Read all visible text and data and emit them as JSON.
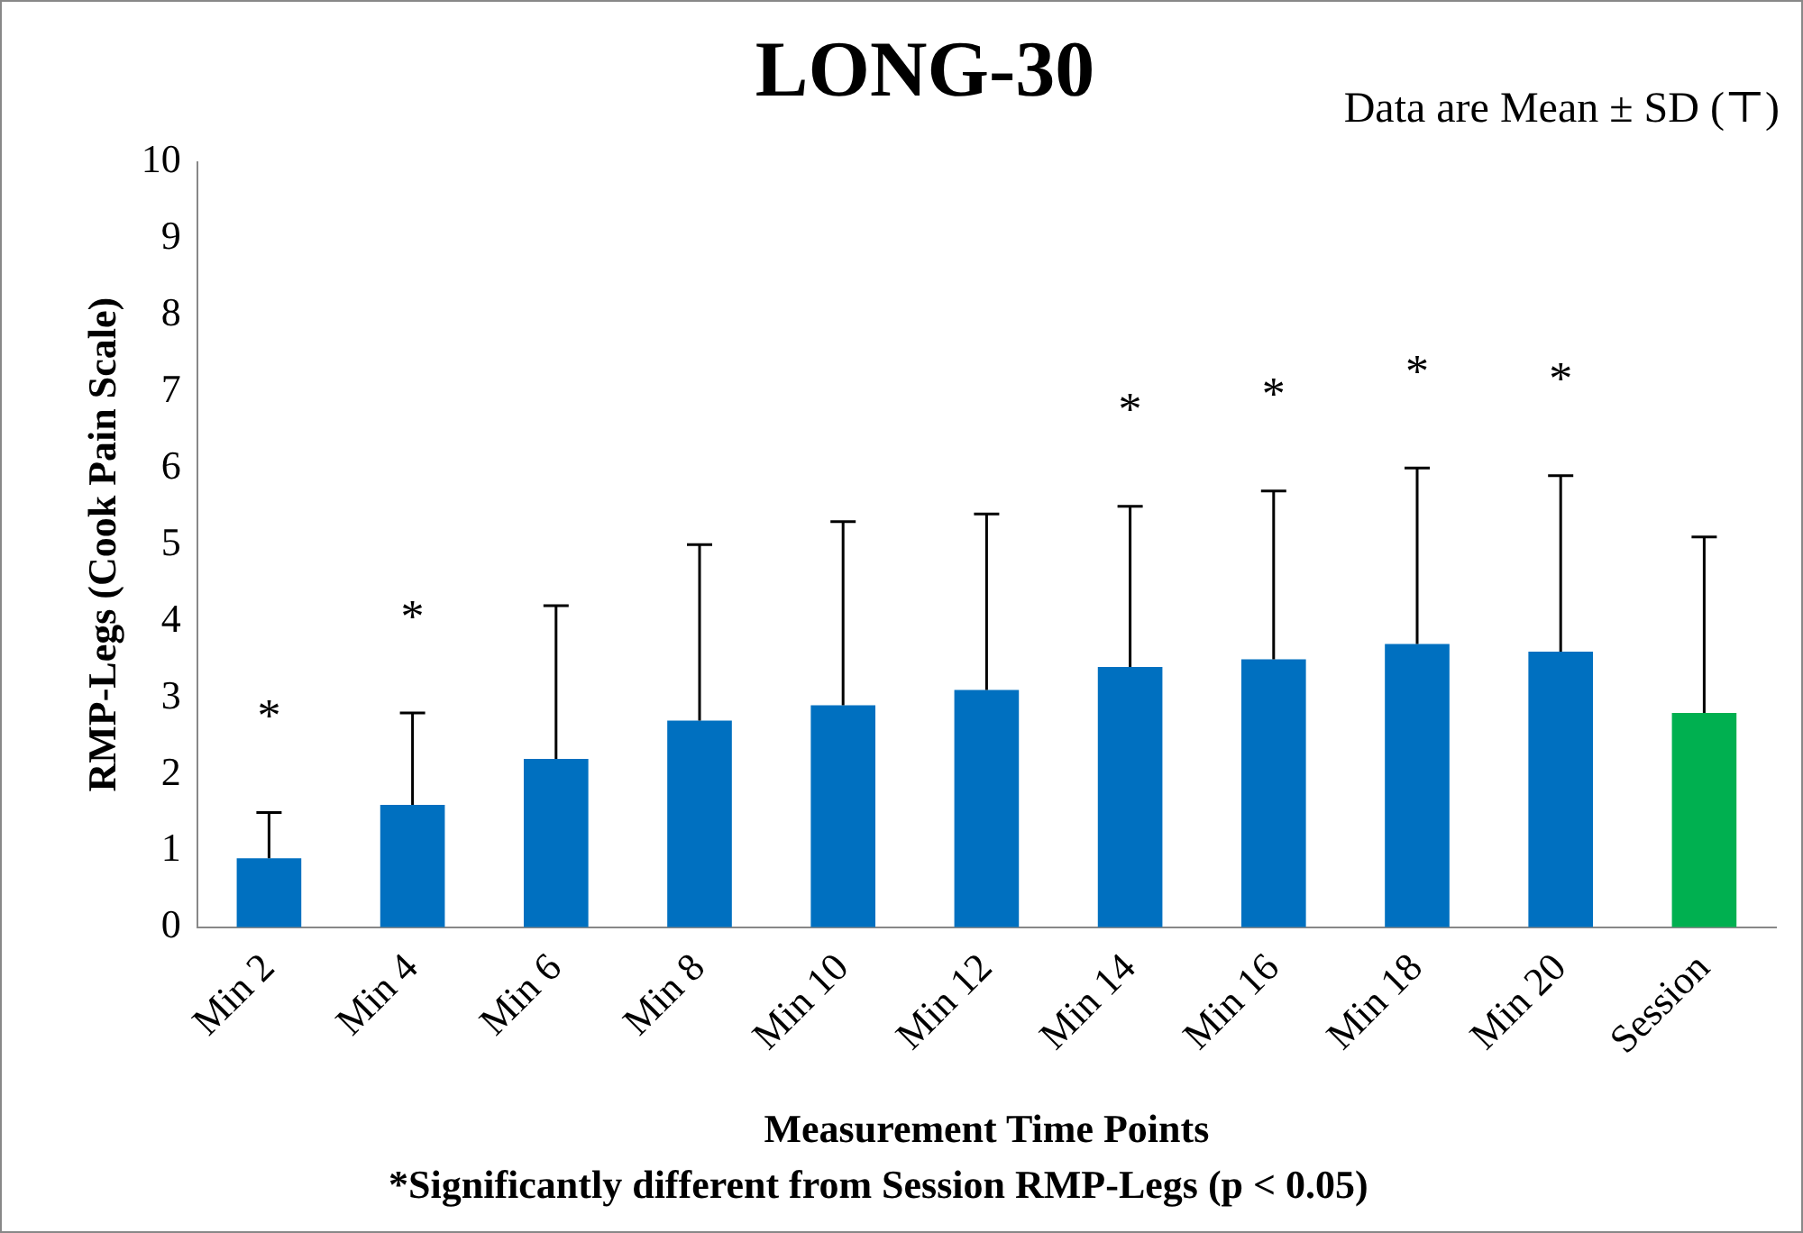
{
  "chart_data": {
    "type": "bar",
    "title": "LONG-30",
    "xlabel": "Measurement Time Points",
    "ylabel": "RMP-Legs (Cook Pain Scale)",
    "categories": [
      "Min 2",
      "Min 4",
      "Min 6",
      "Min 8",
      "Min 10",
      "Min 12",
      "Min 14",
      "Min 16",
      "Min 18",
      "Min 20",
      "Session"
    ],
    "values": [
      0.9,
      1.6,
      2.2,
      2.7,
      2.9,
      3.1,
      3.4,
      3.5,
      3.7,
      3.6,
      2.8
    ],
    "colors": [
      "#0070c0",
      "#0070c0",
      "#0070c0",
      "#0070c0",
      "#0070c0",
      "#0070c0",
      "#0070c0",
      "#0070c0",
      "#0070c0",
      "#0070c0",
      "#00b050"
    ],
    "errors": [
      [
        0.9,
        1.5
      ],
      [
        1.6,
        2.8
      ],
      [
        2.2,
        4.2
      ],
      [
        2.7,
        5.0
      ],
      [
        2.9,
        5.3
      ],
      [
        3.1,
        5.4
      ],
      [
        3.4,
        5.5
      ],
      [
        3.5,
        5.7
      ],
      [
        3.7,
        6.0
      ],
      [
        3.6,
        5.9
      ],
      [
        2.8,
        5.1
      ]
    ],
    "ylim": [
      0,
      10
    ],
    "yticks": [
      0,
      1,
      2,
      3,
      4,
      5,
      6,
      7,
      8,
      9,
      10
    ],
    "grid": false,
    "legend": false,
    "annotations": [
      "Data are Mean ± SD (⊤)",
      "*Significantly different from Session RMP-Legs (p < 0.05)",
      {
        "text": "*",
        "x": "Min 2",
        "y": 1.5
      },
      {
        "text": "*",
        "x": "Min 4",
        "y": 2.8
      },
      {
        "text": "*",
        "x": "Min 14",
        "y": 5.5
      },
      {
        "text": "*",
        "x": "Min 16",
        "y": 5.7
      },
      {
        "text": "*",
        "x": "Min 18",
        "y": 6.0
      },
      {
        "text": "*",
        "x": "Min 20",
        "y": 5.9
      }
    ]
  }
}
